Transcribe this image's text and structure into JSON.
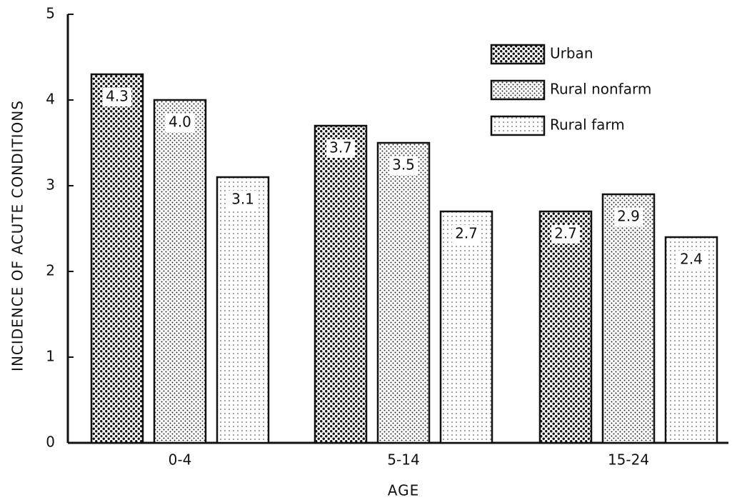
{
  "chart_data": {
    "type": "bar",
    "x_label": "AGE",
    "y_label": "INCIDENCE OF ACUTE CONDITIONS",
    "categories": [
      "0-4",
      "5-14",
      "15-24"
    ],
    "series": [
      {
        "name": "Urban",
        "values": [
          4.3,
          3.7,
          2.7
        ],
        "value_labels": [
          "4.3",
          "3.7",
          "2.7"
        ]
      },
      {
        "name": "Rural nonfarm",
        "values": [
          4.0,
          3.5,
          2.9
        ],
        "value_labels": [
          "4.0",
          "3.5",
          "2.9"
        ]
      },
      {
        "name": "Rural farm",
        "values": [
          3.1,
          2.7,
          2.4
        ],
        "value_labels": [
          "3.1",
          "2.7",
          "2.4"
        ]
      }
    ],
    "ylim": [
      0,
      5
    ],
    "yticks": [
      0,
      1,
      2,
      3,
      4,
      5
    ],
    "legend": "upper right",
    "grid": false
  }
}
